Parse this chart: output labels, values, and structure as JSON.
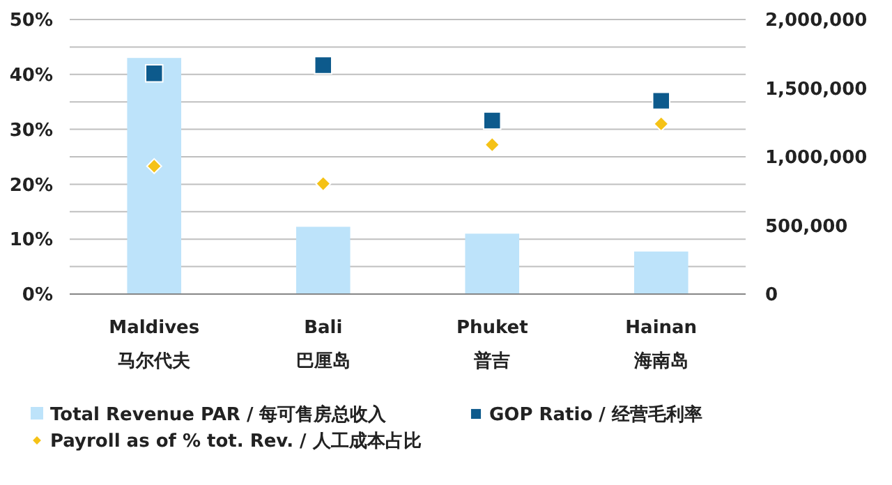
{
  "chart_data": {
    "type": "bar",
    "categories": [
      "Maldives\n马尔代夫",
      "Bali\n巴厘岛",
      "Phuket\n普吉",
      "Hainan\n海南岛"
    ],
    "series": [
      {
        "name": "Total Revenue PAR / 每可售房总收入",
        "axis": "y2",
        "color": "#bde3fa",
        "values": [
          1720000,
          490000,
          440000,
          310000
        ]
      },
      {
        "name": "GOP Ratio / 经营毛利率",
        "type": "scatter",
        "marker": "square",
        "color": "#0d5a8c",
        "values": [
          40.2,
          41.7,
          31.6,
          35.2
        ]
      },
      {
        "name": "Payroll as of % tot. Rev. / 人工成本占比",
        "type": "scatter",
        "marker": "diamond",
        "color": "#f5c216",
        "values": [
          23.3,
          20.1,
          27.2,
          31.0
        ]
      }
    ],
    "ylim": [
      0,
      50
    ],
    "yticks": [
      {
        "value": 0,
        "label": "0%"
      },
      {
        "value": 5,
        "label": null
      },
      {
        "value": 10,
        "label": "10%"
      },
      {
        "value": 15,
        "label": null
      },
      {
        "value": 20,
        "label": "20%"
      },
      {
        "value": 25,
        "label": null
      },
      {
        "value": 30,
        "label": "30%"
      },
      {
        "value": 35,
        "label": null
      },
      {
        "value": 40,
        "label": "40%"
      },
      {
        "value": 45,
        "label": null
      },
      {
        "value": 50,
        "label": "50%"
      }
    ],
    "y2lim": [
      0,
      2000000
    ],
    "y2ticks": [
      {
        "value": 0,
        "label": "0"
      },
      {
        "value": 500000,
        "label": "500,000"
      },
      {
        "value": 1000000,
        "label": "1,000,000"
      },
      {
        "value": 1500000,
        "label": "1,500,000"
      },
      {
        "value": 2000000,
        "label": "2,000,000"
      }
    ],
    "grid": "y",
    "legend": "bottom"
  }
}
